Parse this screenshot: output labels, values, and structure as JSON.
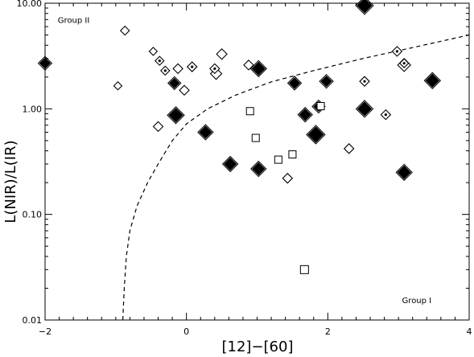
{
  "chart_data": {
    "type": "scatter",
    "title": "",
    "xlabel": "[12]−[60]",
    "ylabel": "L(NIR)/L(IR)",
    "xlim": [
      -2,
      4
    ],
    "ylim": [
      0.01,
      10
    ],
    "y_scale": "log",
    "grid": false,
    "x_ticks": [
      -2,
      0,
      2,
      4
    ],
    "x_tick_labels": [
      "−2",
      "0",
      "2",
      "4"
    ],
    "y_ticks": [
      0.01,
      0.1,
      1,
      10
    ],
    "y_tick_labels": [
      "0.01",
      "0.10",
      "1.00",
      "10.00"
    ],
    "annotations": [
      {
        "text": "Group II",
        "x": -1.82,
        "y": 6.5
      },
      {
        "text": "Group I",
        "x": 3.05,
        "y": 0.0145
      }
    ],
    "boundary_curve": {
      "style": "dashed",
      "points": [
        [
          -0.9,
          0.01
        ],
        [
          -0.88,
          0.02
        ],
        [
          -0.85,
          0.04
        ],
        [
          -0.8,
          0.07
        ],
        [
          -0.7,
          0.12
        ],
        [
          -0.55,
          0.2
        ],
        [
          -0.4,
          0.3
        ],
        [
          -0.2,
          0.5
        ],
        [
          0.0,
          0.72
        ],
        [
          0.3,
          1.0
        ],
        [
          0.7,
          1.35
        ],
        [
          1.2,
          1.8
        ],
        [
          1.8,
          2.3
        ],
        [
          2.5,
          3.0
        ],
        [
          3.2,
          3.8
        ],
        [
          4.0,
          5.0
        ]
      ]
    },
    "series": [
      {
        "marker": "diamond-filled",
        "points": [
          [
            -2.0,
            2.7,
            13
          ],
          [
            -0.15,
            0.87,
            17
          ],
          [
            0.27,
            0.6,
            15
          ],
          [
            0.62,
            0.3,
            15
          ],
          [
            1.02,
            0.27,
            15
          ],
          [
            1.02,
            2.4,
            16
          ],
          [
            1.53,
            1.75,
            13
          ],
          [
            1.68,
            0.88,
            14
          ],
          [
            1.83,
            0.57,
            19
          ],
          [
            1.98,
            1.82,
            13
          ],
          [
            2.52,
            1.0,
            17
          ],
          [
            2.52,
            9.5,
            18
          ],
          [
            3.08,
            0.25,
            16
          ],
          [
            3.48,
            1.85,
            16
          ],
          [
            -0.17,
            1.75,
            12
          ],
          [
            1.87,
            1.05,
            12
          ]
        ]
      },
      {
        "marker": "diamond-open",
        "points": [
          [
            -0.97,
            1.65,
            10
          ],
          [
            -0.87,
            5.5,
            11
          ],
          [
            -0.47,
            3.5,
            10
          ],
          [
            -0.4,
            0.68,
            12
          ],
          [
            -0.12,
            2.4,
            12
          ],
          [
            -0.03,
            1.5,
            12
          ],
          [
            0.42,
            2.15,
            14
          ],
          [
            0.5,
            3.3,
            13
          ],
          [
            0.88,
            2.6,
            12
          ],
          [
            1.43,
            0.22,
            12
          ],
          [
            2.3,
            0.42,
            12
          ],
          [
            3.08,
            2.6,
            16
          ]
        ]
      },
      {
        "marker": "diamond-dotted",
        "points": [
          [
            -0.38,
            2.85,
            11
          ],
          [
            -0.3,
            2.3,
            11
          ],
          [
            0.08,
            2.5,
            12
          ],
          [
            0.4,
            2.4,
            12
          ],
          [
            2.52,
            1.82,
            12
          ],
          [
            2.82,
            0.88,
            12
          ],
          [
            2.98,
            3.5,
            12
          ],
          [
            3.08,
            2.7,
            11
          ]
        ]
      },
      {
        "marker": "square-open",
        "points": [
          [
            0.9,
            0.95,
            9
          ],
          [
            0.98,
            0.53,
            9
          ],
          [
            1.3,
            0.33,
            9
          ],
          [
            1.5,
            0.37,
            9
          ],
          [
            1.67,
            0.03,
            10
          ],
          [
            1.9,
            1.06,
            9
          ]
        ]
      }
    ]
  }
}
